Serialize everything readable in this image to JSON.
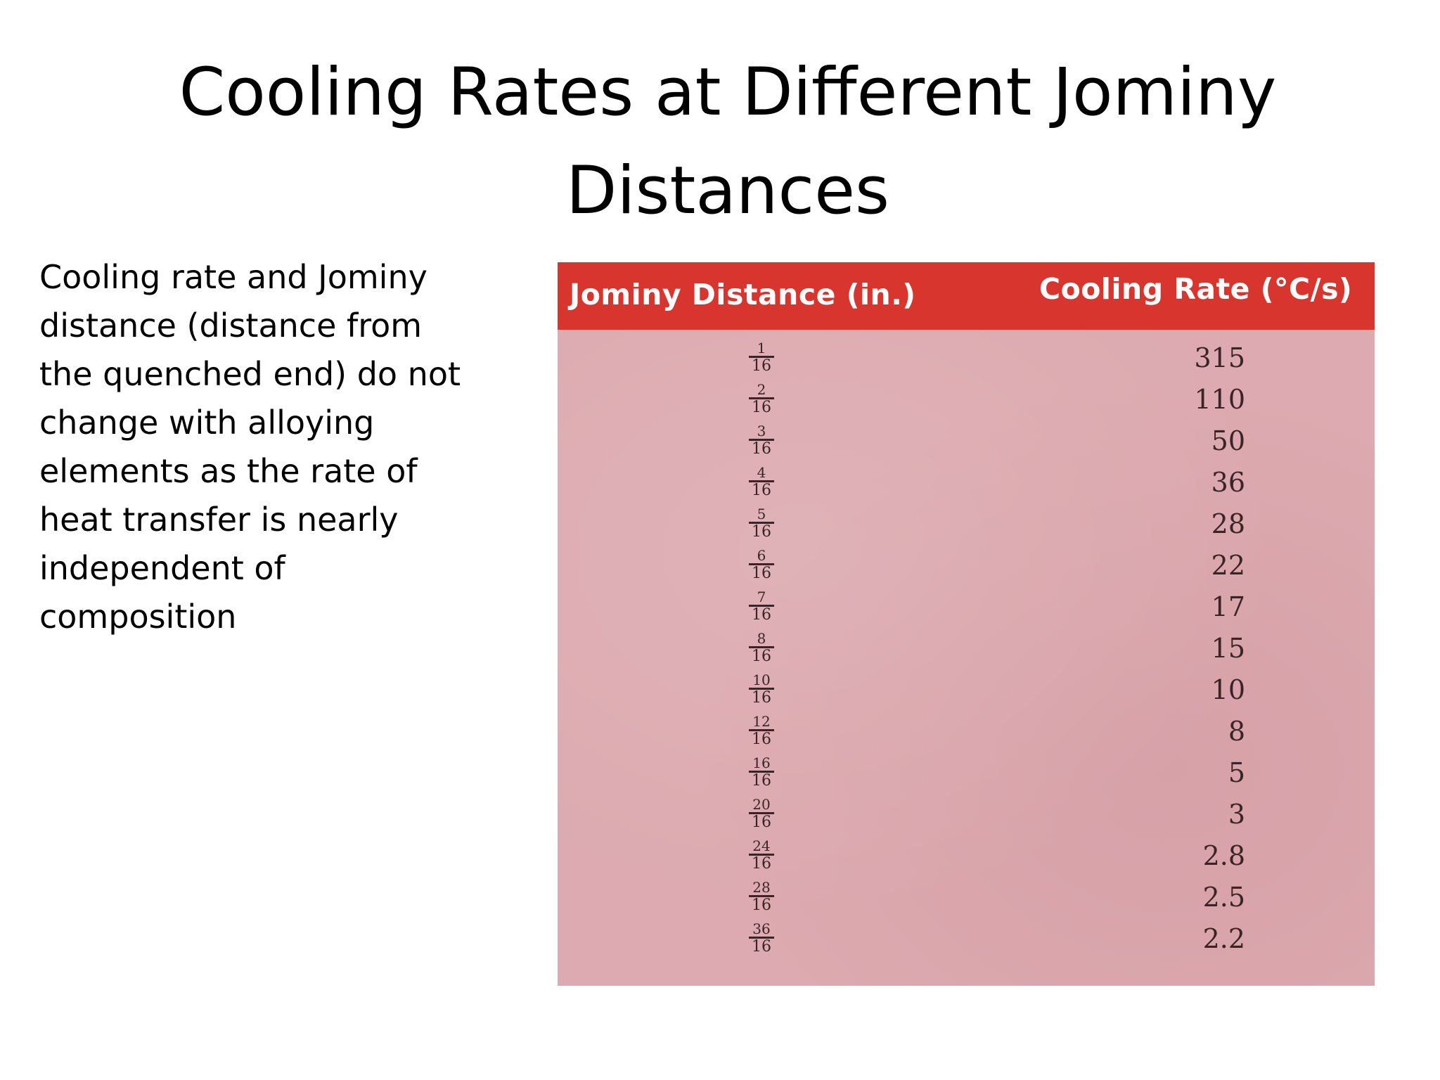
{
  "slide": {
    "title_lines": [
      "Cooling Rates at Different Jominy",
      "Distances"
    ],
    "body_lines": [
      "Cooling rate and Jominy",
      "distance (distance from",
      "the quenched end) do not",
      "change with alloying",
      "elements as the rate of",
      "heat transfer is nearly",
      "independent of",
      "composition"
    ]
  },
  "table": {
    "header_color": "#d9352f",
    "body_color": "#dcaab0",
    "columns": [
      "Jominy Distance (in.)",
      "Cooling Rate (°C/s)"
    ],
    "rows": [
      {
        "distance_num": "1",
        "distance_den": "16",
        "rate": "315"
      },
      {
        "distance_num": "2",
        "distance_den": "16",
        "rate": "110"
      },
      {
        "distance_num": "3",
        "distance_den": "16",
        "rate": "50"
      },
      {
        "distance_num": "4",
        "distance_den": "16",
        "rate": "36"
      },
      {
        "distance_num": "5",
        "distance_den": "16",
        "rate": "28"
      },
      {
        "distance_num": "6",
        "distance_den": "16",
        "rate": "22"
      },
      {
        "distance_num": "7",
        "distance_den": "16",
        "rate": "17"
      },
      {
        "distance_num": "8",
        "distance_den": "16",
        "rate": "15"
      },
      {
        "distance_num": "10",
        "distance_den": "16",
        "rate": "10"
      },
      {
        "distance_num": "12",
        "distance_den": "16",
        "rate": "8"
      },
      {
        "distance_num": "16",
        "distance_den": "16",
        "rate": "5"
      },
      {
        "distance_num": "20",
        "distance_den": "16",
        "rate": "3"
      },
      {
        "distance_num": "24",
        "distance_den": "16",
        "rate": "2.8"
      },
      {
        "distance_num": "28",
        "distance_den": "16",
        "rate": "2.5"
      },
      {
        "distance_num": "36",
        "distance_den": "16",
        "rate": "2.2"
      }
    ]
  }
}
